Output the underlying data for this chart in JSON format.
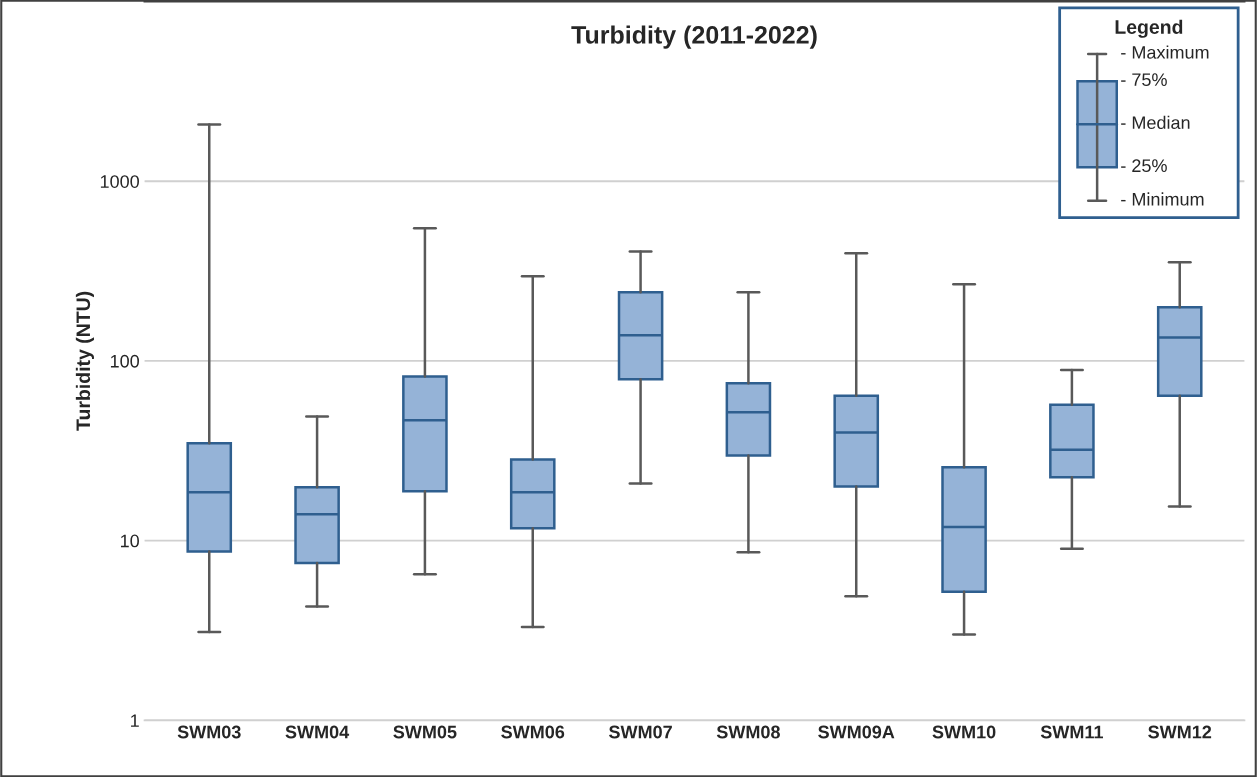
{
  "chart_data": {
    "type": "box",
    "title": "Turbidity (2011-2022)",
    "ylabel": "Turbidity (NTU)",
    "categories": [
      "SWM03",
      "SWM04",
      "SWM05",
      "SWM06",
      "SWM07",
      "SWM08",
      "SWM09A",
      "SWM10",
      "SWM11",
      "SWM12"
    ],
    "boxes": [
      {
        "low": 3.1,
        "q1": 8.7,
        "median": 18.6,
        "q3": 34.8,
        "high": 2070
      },
      {
        "low": 4.3,
        "q1": 7.5,
        "median": 14,
        "q3": 19.8,
        "high": 49
      },
      {
        "low": 6.5,
        "q1": 18.8,
        "median": 46.7,
        "q3": 82,
        "high": 547
      },
      {
        "low": 3.3,
        "q1": 11.7,
        "median": 18.6,
        "q3": 28.3,
        "high": 296
      },
      {
        "low": 20.8,
        "q1": 79,
        "median": 139,
        "q3": 241,
        "high": 407
      },
      {
        "low": 8.6,
        "q1": 29.8,
        "median": 51.8,
        "q3": 75,
        "high": 241
      },
      {
        "low": 4.9,
        "q1": 20,
        "median": 40,
        "q3": 64,
        "high": 397
      },
      {
        "low": 3.0,
        "q1": 5.2,
        "median": 11.9,
        "q3": 25.6,
        "high": 267
      },
      {
        "low": 9.0,
        "q1": 22.5,
        "median": 32,
        "q3": 57,
        "high": 89
      },
      {
        "low": 15.5,
        "q1": 64,
        "median": 135,
        "q3": 199,
        "high": 354
      }
    ],
    "color": "#95b3d7",
    "log": true,
    "ylim": [
      1,
      10000
    ],
    "yticks": [
      1,
      10,
      100,
      1000
    ],
    "grid": "y",
    "legend_title": "Legend",
    "annotations": [
      "- Maximum",
      "- 75%",
      "- Median",
      "- 25%",
      "- Minimum"
    ]
  }
}
